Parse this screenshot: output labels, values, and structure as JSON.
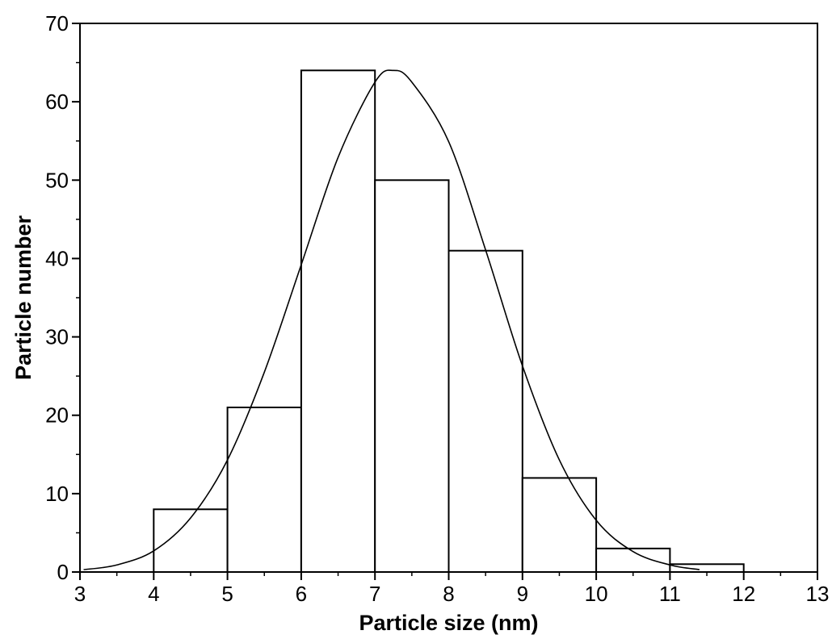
{
  "chart_data": {
    "type": "bar",
    "subtype": "histogram with fitted normal curve",
    "title": "",
    "xlabel": "Particle size (nm)",
    "ylabel": "Particle number",
    "xlim": [
      3,
      13
    ],
    "ylim": [
      0,
      70
    ],
    "x_ticks": [
      3,
      4,
      5,
      6,
      7,
      8,
      9,
      10,
      11,
      12,
      13
    ],
    "y_ticks": [
      0,
      10,
      20,
      30,
      40,
      50,
      60,
      70
    ],
    "grid": false,
    "legend": "none",
    "bins": [
      {
        "x0": 4,
        "x1": 5,
        "value": 8
      },
      {
        "x0": 5,
        "x1": 6,
        "value": 21
      },
      {
        "x0": 6,
        "x1": 7,
        "value": 64
      },
      {
        "x0": 7,
        "x1": 8,
        "value": 50
      },
      {
        "x0": 8,
        "x1": 9,
        "value": 41
      },
      {
        "x0": 9,
        "x1": 10,
        "value": 12
      },
      {
        "x0": 10,
        "x1": 11,
        "value": 3
      },
      {
        "x0": 11,
        "x1": 12,
        "value": 1
      }
    ],
    "fit_curve": {
      "type": "gaussian",
      "peak_x": 7.25,
      "peak_y": 64,
      "x_range": [
        3.05,
        11.4
      ],
      "points": [
        [
          3.05,
          0.3
        ],
        [
          3.5,
          0.9
        ],
        [
          4.0,
          2.7
        ],
        [
          4.5,
          6.9
        ],
        [
          5.0,
          14.3
        ],
        [
          5.5,
          25.5
        ],
        [
          6.0,
          39.2
        ],
        [
          6.5,
          52.9
        ],
        [
          7.0,
          62.5
        ],
        [
          7.25,
          64
        ],
        [
          7.5,
          62.5
        ],
        [
          8.0,
          54.9
        ],
        [
          8.5,
          41.1
        ],
        [
          9.0,
          26.3
        ],
        [
          9.5,
          14.3
        ],
        [
          10.0,
          6.6
        ],
        [
          10.5,
          2.6
        ],
        [
          11.0,
          0.9
        ],
        [
          11.4,
          0.3
        ]
      ]
    },
    "colors": {
      "line": "#000000",
      "background": "#ffffff",
      "bar_fill": "#ffffff"
    }
  }
}
